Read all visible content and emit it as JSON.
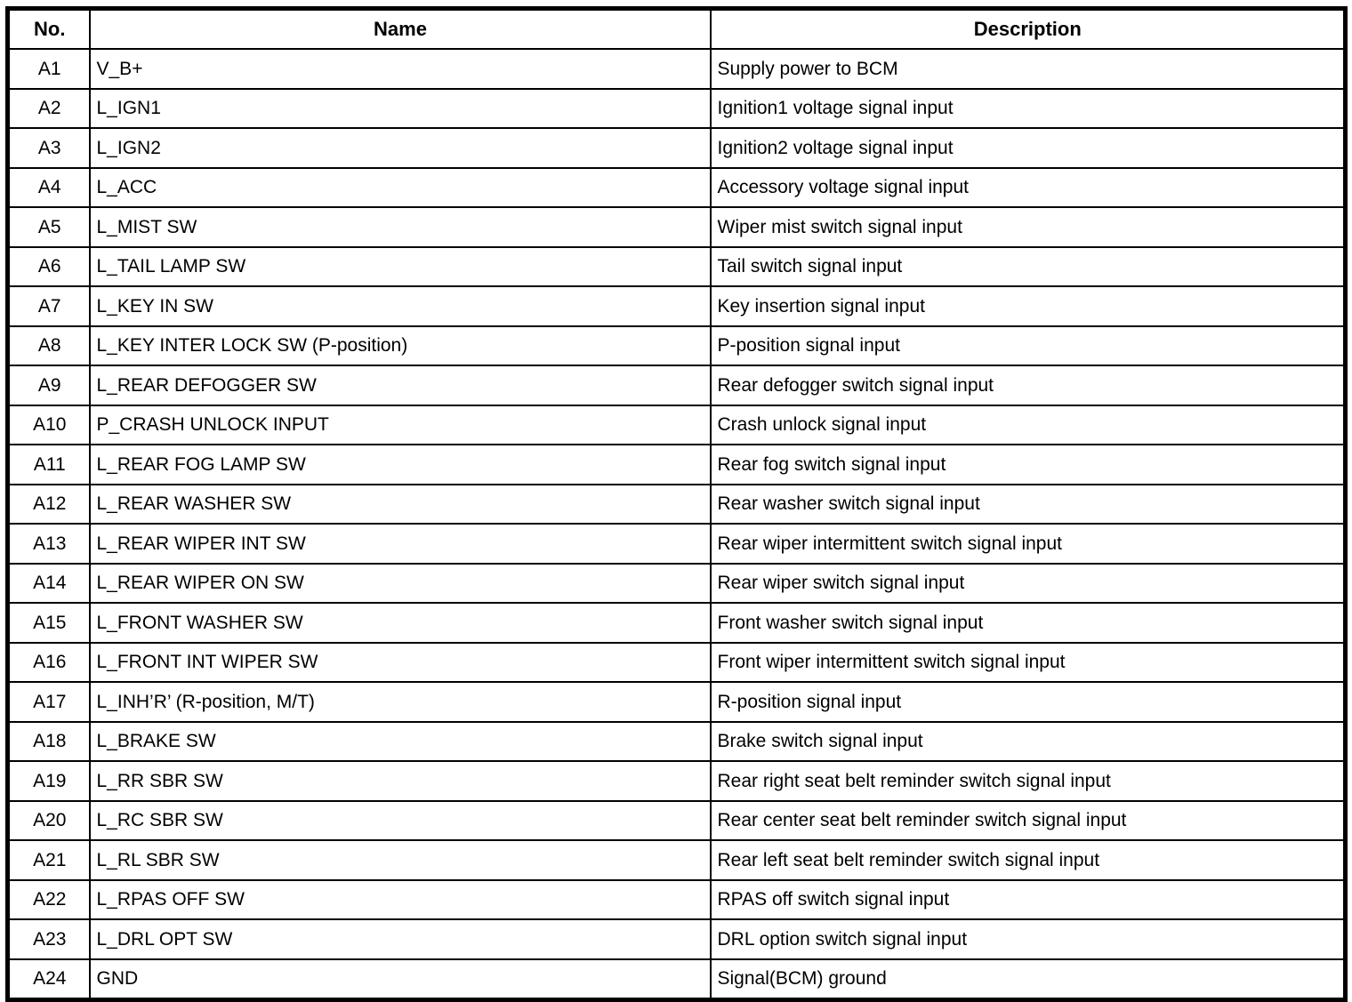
{
  "table": {
    "columns": {
      "no": "No.",
      "name": "Name",
      "description": "Description"
    },
    "rows": [
      {
        "no": "A1",
        "name": "V_B+",
        "description": "Supply power to BCM"
      },
      {
        "no": "A2",
        "name": "L_IGN1",
        "description": "Ignition1 voltage signal input"
      },
      {
        "no": "A3",
        "name": "L_IGN2",
        "description": "Ignition2 voltage signal input"
      },
      {
        "no": "A4",
        "name": "L_ACC",
        "description": "Accessory voltage signal input"
      },
      {
        "no": "A5",
        "name": "L_MIST SW",
        "description": "Wiper mist switch signal input"
      },
      {
        "no": "A6",
        "name": "L_TAIL LAMP SW",
        "description": "Tail switch signal input"
      },
      {
        "no": "A7",
        "name": "L_KEY IN SW",
        "description": "Key insertion signal input"
      },
      {
        "no": "A8",
        "name": "L_KEY INTER LOCK SW (P-position)",
        "description": "P-position signal input"
      },
      {
        "no": "A9",
        "name": "L_REAR DEFOGGER SW",
        "description": "Rear defogger switch signal input"
      },
      {
        "no": "A10",
        "name": "P_CRASH UNLOCK INPUT",
        "description": "Crash unlock signal input"
      },
      {
        "no": "A11",
        "name": "L_REAR FOG LAMP SW",
        "description": "Rear fog switch signal input"
      },
      {
        "no": "A12",
        "name": "L_REAR WASHER SW",
        "description": "Rear washer switch signal input"
      },
      {
        "no": "A13",
        "name": "L_REAR WIPER INT SW",
        "description": "Rear wiper intermittent switch signal input"
      },
      {
        "no": "A14",
        "name": "L_REAR WIPER ON SW",
        "description": "Rear wiper switch signal input"
      },
      {
        "no": "A15",
        "name": "L_FRONT WASHER SW",
        "description": "Front washer switch signal input"
      },
      {
        "no": "A16",
        "name": "L_FRONT INT WIPER SW",
        "description": "Front wiper intermittent switch signal input"
      },
      {
        "no": "A17",
        "name": "L_INH’R’ (R-position, M/T)",
        "description": "R-position signal input"
      },
      {
        "no": "A18",
        "name": "L_BRAKE SW",
        "description": "Brake switch signal input"
      },
      {
        "no": "A19",
        "name": "L_RR SBR SW",
        "description": "Rear right seat belt reminder switch signal input"
      },
      {
        "no": "A20",
        "name": "L_RC SBR SW",
        "description": "Rear center seat belt reminder switch signal input"
      },
      {
        "no": "A21",
        "name": "L_RL SBR SW",
        "description": "Rear left seat belt reminder switch signal input"
      },
      {
        "no": "A22",
        "name": "L_RPAS OFF SW",
        "description": "RPAS off switch signal input"
      },
      {
        "no": "A23",
        "name": "L_DRL OPT SW",
        "description": "DRL option switch signal input"
      },
      {
        "no": "A24",
        "name": "GND",
        "description": "Signal(BCM) ground"
      }
    ]
  },
  "colors": {
    "border": "#000000",
    "background": "#ffffff",
    "text": "#000000"
  }
}
